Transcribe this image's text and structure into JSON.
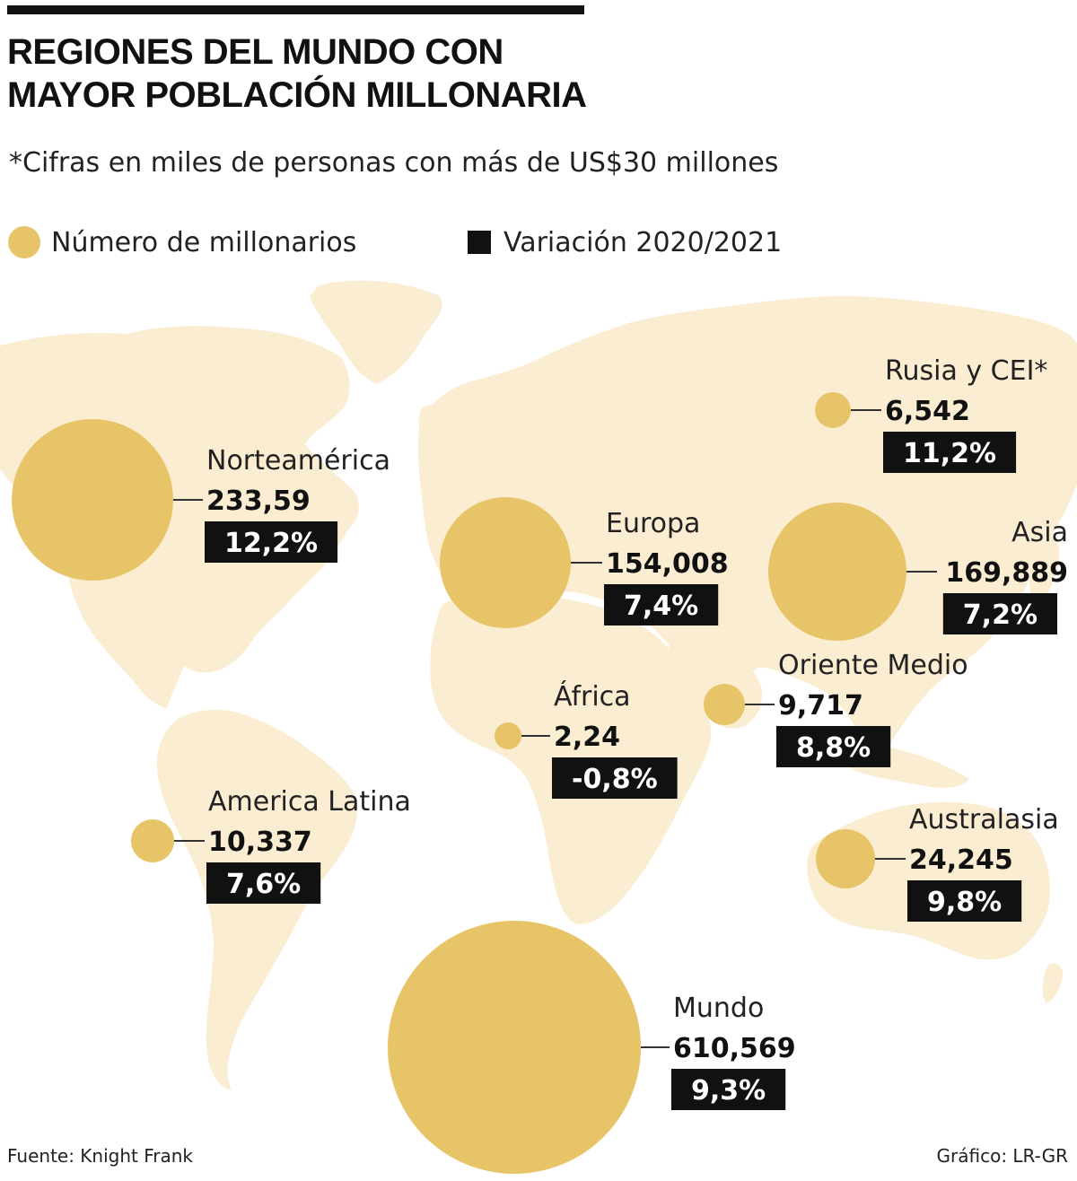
{
  "title": {
    "line1": "REGIONES DEL MUNDO CON",
    "line2": "MAYOR POBLACIÓN MILLONARIA"
  },
  "subtitle": "*Cifras en miles de personas con más de US$30 millones",
  "legend": {
    "count_label": "Número de millonarios",
    "change_label": "Variación 2020/2021"
  },
  "colors": {
    "bubble": "#e8c468",
    "map": "#fbedd2",
    "box": "#111111",
    "box_text": "#ffffff"
  },
  "chart_data": {
    "type": "bubble-map",
    "title": "REGIONES DEL MUNDO CON MAYOR POBLACIÓN MILLONARIA",
    "unit": "miles de personas",
    "regions": [
      {
        "name": "Norteamérica",
        "value_label": "233,59",
        "change_label": "12,2%",
        "change_pct": 12.2
      },
      {
        "name": "Europa",
        "value_label": "154,008",
        "change_label": "7,4%",
        "change_pct": 7.4
      },
      {
        "name": "Asia",
        "value_label": "169,889",
        "change_label": "7,2%",
        "change_pct": 7.2
      },
      {
        "name": "Rusia y CEI*",
        "value_label": "6,542",
        "change_label": "11,2%",
        "change_pct": 11.2
      },
      {
        "name": "Oriente Medio",
        "value_label": "9,717",
        "change_label": "8,8%",
        "change_pct": 8.8
      },
      {
        "name": "África",
        "value_label": "2,24",
        "change_label": "-0,8%",
        "change_pct": -0.8
      },
      {
        "name": "America Latina",
        "value_label": "10,337",
        "change_label": "7,6%",
        "change_pct": 7.6
      },
      {
        "name": "Australasia",
        "value_label": "24,245",
        "change_label": "9,8%",
        "change_pct": 9.8
      },
      {
        "name": "Mundo",
        "value_label": "610,569",
        "change_label": "9,3%",
        "change_pct": 9.3
      }
    ]
  },
  "footer": {
    "source": "Fuente: Knight Frank",
    "credit": "Gráfico: LR-GR"
  }
}
